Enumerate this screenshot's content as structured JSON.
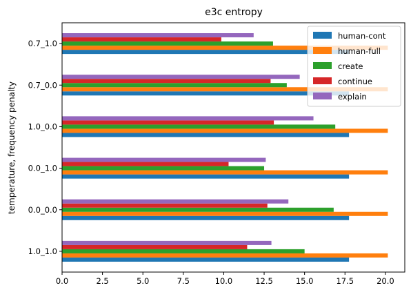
{
  "chart_data": {
    "type": "bar",
    "orientation": "horizontal",
    "title": "e3c entropy",
    "xlabel": "",
    "ylabel": "temperature, frequency penalty",
    "categories": [
      "1.0_1.0",
      "0.0_0.0",
      "0.0_1.0",
      "1.0_0.0",
      "0.7_0.0",
      "0.7_1.0"
    ],
    "xlim": [
      0,
      21.2
    ],
    "xticks": [
      "0.0",
      "2.5",
      "5.0",
      "7.5",
      "10.0",
      "12.5",
      "15.0",
      "17.5",
      "20.0"
    ],
    "legend_position": "upper right",
    "series": [
      {
        "name": "human-cont",
        "color": "#1f77b4",
        "values": [
          17.75,
          17.75,
          17.75,
          17.75,
          17.75,
          17.75
        ]
      },
      {
        "name": "human-full",
        "color": "#ff7f0e",
        "values": [
          20.15,
          20.15,
          20.15,
          20.15,
          20.15,
          20.15
        ]
      },
      {
        "name": "create",
        "color": "#2ca02c",
        "values": [
          15.0,
          16.8,
          12.5,
          16.9,
          13.9,
          13.05
        ]
      },
      {
        "name": "continue",
        "color": "#d62728",
        "values": [
          11.45,
          12.7,
          10.3,
          13.1,
          12.9,
          9.85
        ]
      },
      {
        "name": "explain",
        "color": "#9467bd",
        "values": [
          12.95,
          14.0,
          12.6,
          15.55,
          14.7,
          11.85
        ]
      }
    ]
  }
}
